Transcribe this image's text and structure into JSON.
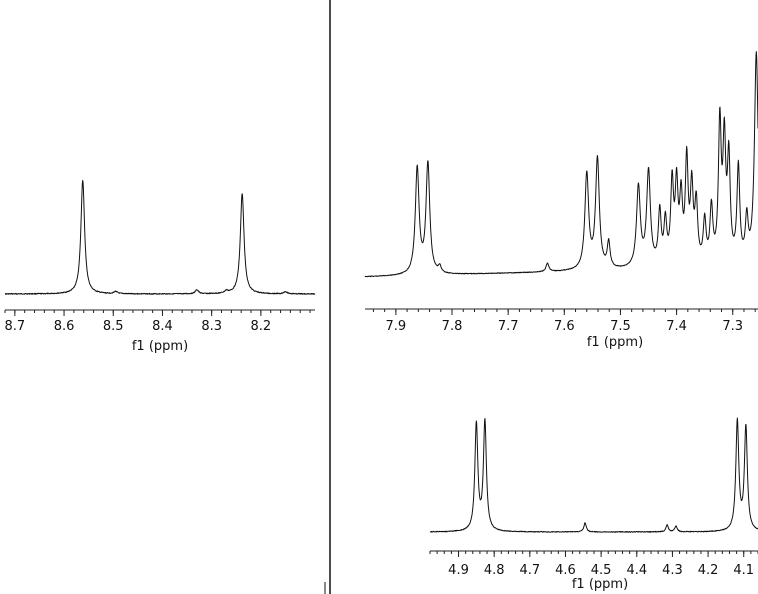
{
  "chart_data": [
    {
      "type": "line",
      "xlabel": "f1 (ppm)",
      "xlim": [
        8.72,
        8.09
      ],
      "tick_labels": [
        "8.7",
        "8.6",
        "8.5",
        "8.4",
        "8.3",
        "8.2"
      ],
      "tick_values": [
        8.7,
        8.6,
        8.5,
        8.4,
        8.3,
        8.2
      ],
      "baseline_intensity": 0.0,
      "peaks": [
        {
          "ppm": 8.562,
          "height": 1.0,
          "width": 0.0045
        },
        {
          "ppm": 8.238,
          "height": 0.88,
          "width": 0.0045
        },
        {
          "ppm": 8.495,
          "height": 0.02,
          "width": 0.004
        },
        {
          "ppm": 8.33,
          "height": 0.035,
          "width": 0.004
        },
        {
          "ppm": 8.27,
          "height": 0.02,
          "width": 0.004
        },
        {
          "ppm": 8.15,
          "height": 0.02,
          "width": 0.004
        }
      ]
    },
    {
      "type": "line",
      "xlabel": "f1 (ppm)",
      "xlim": [
        7.955,
        7.255
      ],
      "tick_labels": [
        "7.9",
        "7.8",
        "7.7",
        "7.6",
        "7.5",
        "7.4",
        "7.3"
      ],
      "tick_values": [
        7.9,
        7.8,
        7.7,
        7.6,
        7.5,
        7.4,
        7.3
      ],
      "baseline_intensity": 0.0,
      "peaks": [
        {
          "ppm": 7.862,
          "height": 0.5,
          "width": 0.004
        },
        {
          "ppm": 7.843,
          "height": 0.52,
          "width": 0.004
        },
        {
          "ppm": 7.822,
          "height": 0.03,
          "width": 0.003
        },
        {
          "ppm": 7.63,
          "height": 0.04,
          "width": 0.003
        },
        {
          "ppm": 7.56,
          "height": 0.45,
          "width": 0.004
        },
        {
          "ppm": 7.541,
          "height": 0.52,
          "width": 0.004
        },
        {
          "ppm": 7.521,
          "height": 0.12,
          "width": 0.003
        },
        {
          "ppm": 7.468,
          "height": 0.38,
          "width": 0.004
        },
        {
          "ppm": 7.45,
          "height": 0.45,
          "width": 0.004
        },
        {
          "ppm": 7.43,
          "height": 0.25,
          "width": 0.003
        },
        {
          "ppm": 7.42,
          "height": 0.2,
          "width": 0.003
        },
        {
          "ppm": 7.408,
          "height": 0.38,
          "width": 0.003
        },
        {
          "ppm": 7.4,
          "height": 0.36,
          "width": 0.003
        },
        {
          "ppm": 7.392,
          "height": 0.3,
          "width": 0.003
        },
        {
          "ppm": 7.382,
          "height": 0.48,
          "width": 0.003
        },
        {
          "ppm": 7.373,
          "height": 0.35,
          "width": 0.003
        },
        {
          "ppm": 7.365,
          "height": 0.28,
          "width": 0.003
        },
        {
          "ppm": 7.35,
          "height": 0.2,
          "width": 0.003
        },
        {
          "ppm": 7.338,
          "height": 0.26,
          "width": 0.003
        },
        {
          "ppm": 7.323,
          "height": 0.65,
          "width": 0.003
        },
        {
          "ppm": 7.315,
          "height": 0.55,
          "width": 0.003
        },
        {
          "ppm": 7.307,
          "height": 0.48,
          "width": 0.003
        },
        {
          "ppm": 7.29,
          "height": 0.45,
          "width": 0.003
        },
        {
          "ppm": 7.275,
          "height": 0.2,
          "width": 0.003
        },
        {
          "ppm": 7.258,
          "height": 1.0,
          "width": 0.004
        }
      ]
    },
    {
      "type": "line",
      "xlabel": "f1 (ppm)",
      "xlim": [
        4.98,
        4.06
      ],
      "tick_labels": [
        "4.9",
        "4.8",
        "4.7",
        "4.6",
        "4.5",
        "4.4",
        "4.3",
        "4.2",
        "4.1"
      ],
      "tick_values": [
        4.9,
        4.8,
        4.7,
        4.6,
        4.5,
        4.4,
        4.3,
        4.2,
        4.1
      ],
      "baseline_intensity": 0.0,
      "peaks": [
        {
          "ppm": 4.85,
          "height": 0.93,
          "width": 0.005
        },
        {
          "ppm": 4.826,
          "height": 0.95,
          "width": 0.005
        },
        {
          "ppm": 4.545,
          "height": 0.08,
          "width": 0.004
        },
        {
          "ppm": 4.315,
          "height": 0.06,
          "width": 0.004
        },
        {
          "ppm": 4.29,
          "height": 0.05,
          "width": 0.004
        },
        {
          "ppm": 4.118,
          "height": 0.95,
          "width": 0.005
        },
        {
          "ppm": 4.094,
          "height": 0.9,
          "width": 0.005
        }
      ]
    }
  ]
}
